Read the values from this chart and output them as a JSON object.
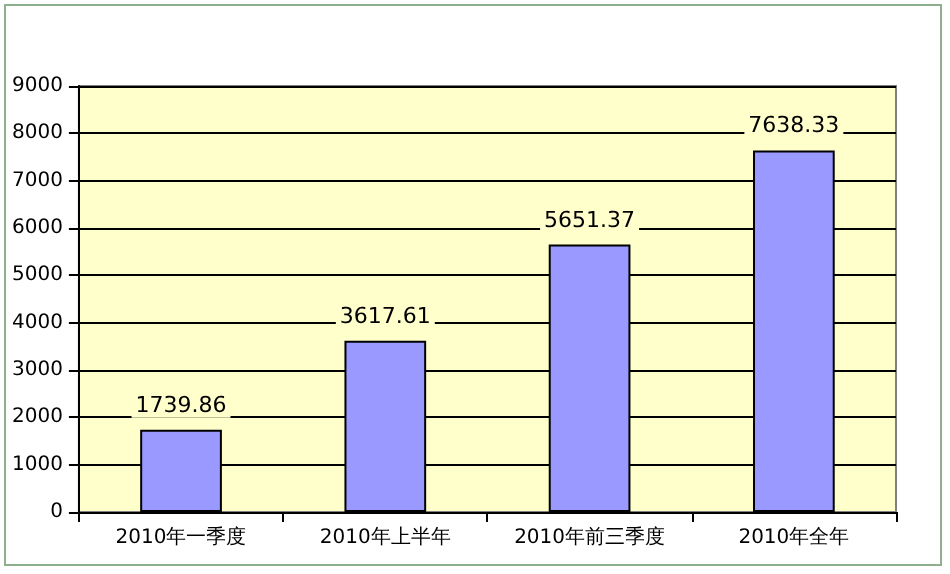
{
  "chart_data": {
    "type": "bar",
    "categories": [
      "2010年一季度",
      "2010年上半年",
      "2010年前三季度",
      "2010年全年"
    ],
    "values": [
      1739.86,
      3617.61,
      5651.37,
      7638.33
    ],
    "color": "#9999ff",
    "ylim": [
      0,
      9000
    ],
    "yticks": [
      0,
      1000,
      2000,
      3000,
      4000,
      5000,
      6000,
      7000,
      8000,
      9000
    ],
    "grid": "y",
    "data_labels": true
  }
}
